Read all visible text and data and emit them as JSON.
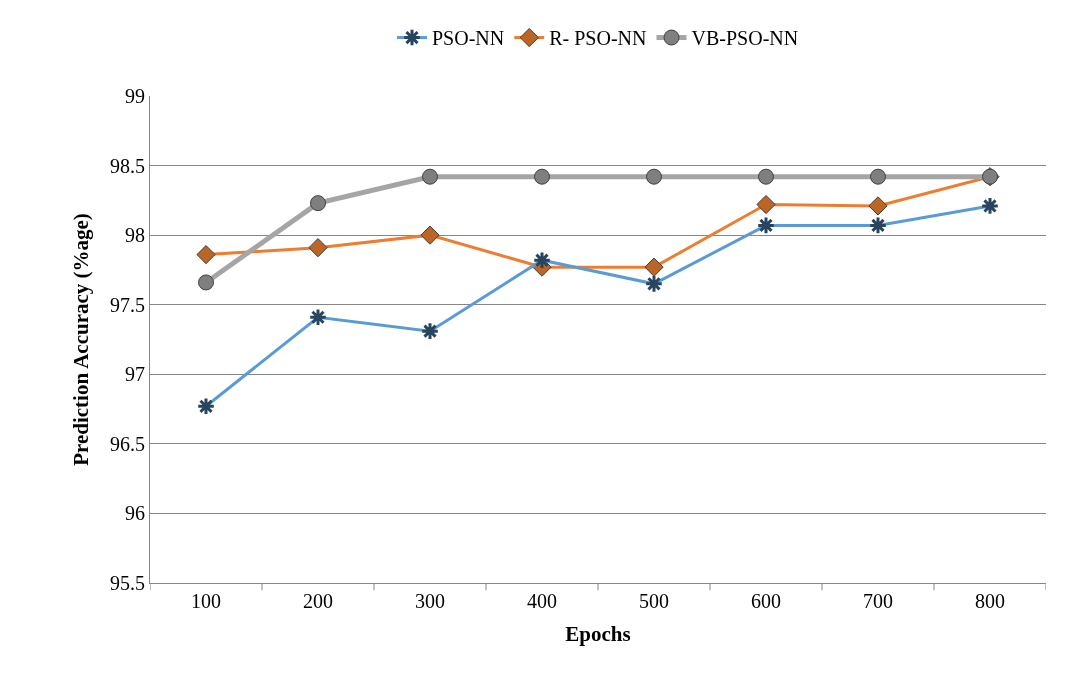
{
  "chart_data": {
    "type": "line",
    "xlabel": "Epochs",
    "ylabel": "Prediction Accuracy (%age)",
    "categories": [
      "100",
      "200",
      "300",
      "400",
      "500",
      "600",
      "700",
      "800"
    ],
    "series": [
      {
        "name": "PSO-NN",
        "color": "#5b9bd5",
        "marker": "cross",
        "values": [
          96.77,
          97.41,
          97.31,
          97.82,
          97.65,
          98.07,
          98.07,
          98.21
        ]
      },
      {
        "name": "R- PSO-NN",
        "color": "#ed7d31",
        "marker": "diamond",
        "values": [
          97.86,
          97.91,
          98.0,
          97.77,
          97.77,
          98.22,
          98.21,
          98.42
        ]
      },
      {
        "name": "VB-PSO-NN",
        "color": "#a5a5a5",
        "marker": "circle",
        "values": [
          97.66,
          98.23,
          98.42,
          98.42,
          98.42,
          98.42,
          98.42,
          98.42
        ]
      }
    ],
    "ylim": [
      95.5,
      99
    ],
    "yticks": [
      95.5,
      96,
      96.5,
      97,
      97.5,
      98,
      98.5,
      99
    ],
    "grid": "y",
    "legend": "top"
  }
}
